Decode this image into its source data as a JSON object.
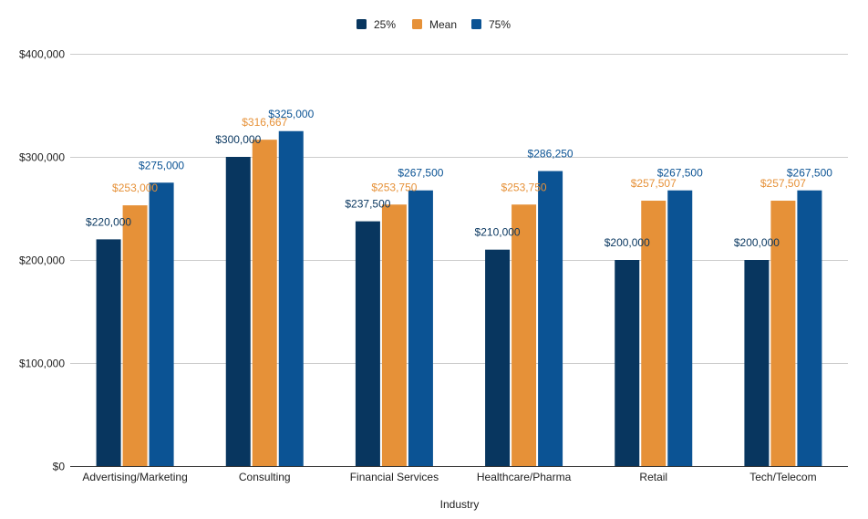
{
  "colors": {
    "series": [
      "#08365f",
      "#e69138",
      "#0b5394"
    ],
    "grid": "#cccccc",
    "axis_line": "#333333",
    "text": "#222222"
  },
  "chart_data": {
    "type": "bar",
    "title": "",
    "xlabel": "Industry",
    "ylabel": "",
    "ylim": [
      0,
      400000
    ],
    "y_ticks": [
      0,
      100000,
      200000,
      300000,
      400000
    ],
    "y_tick_labels": [
      "$0",
      "$100,000",
      "$200,000",
      "$300,000",
      "$400,000"
    ],
    "grid": true,
    "legend_position": "top-center",
    "categories": [
      "Advertising/Marketing",
      "Consulting",
      "Financial Services",
      "Healthcare/Pharma",
      "Retail",
      "Tech/Telecom"
    ],
    "series": [
      {
        "name": "25%",
        "values": [
          220000,
          300000,
          237500,
          210000,
          200000,
          200000
        ],
        "labels": [
          "$220,000",
          "$300,000",
          "$237,500",
          "$210,000",
          "$200,000",
          "$200,000"
        ]
      },
      {
        "name": "Mean",
        "values": [
          253000,
          316667,
          253750,
          253750,
          257507,
          257507
        ],
        "labels": [
          "$253,000",
          "$316,667",
          "$253,750",
          "$253,750",
          "$257,507",
          "$257,507"
        ]
      },
      {
        "name": "75%",
        "values": [
          275000,
          325000,
          267500,
          286250,
          267500,
          267500
        ],
        "labels": [
          "$275,000",
          "$325,000",
          "$267,500",
          "$286,250",
          "$267,500",
          "$267,500"
        ]
      }
    ]
  }
}
